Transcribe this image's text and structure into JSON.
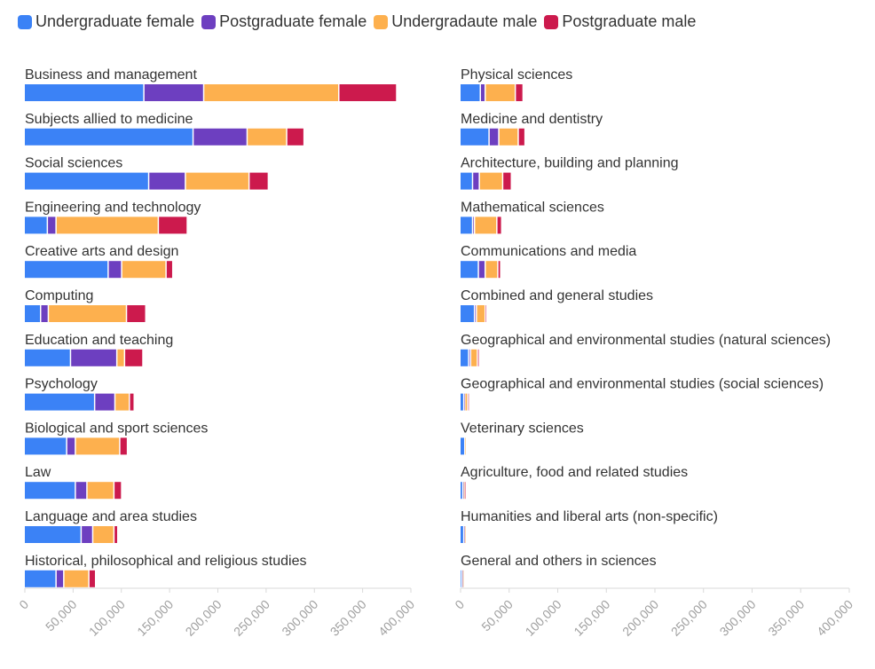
{
  "legend": {
    "items": [
      {
        "label": "Undergraduate female",
        "color": "#3b82f6"
      },
      {
        "label": "Postgraduate female",
        "color": "#6d3fc0"
      },
      {
        "label": "Undergradaute male",
        "color": "#fdb04e"
      },
      {
        "label": "Postgraduate male",
        "color": "#cc1a4d"
      }
    ]
  },
  "chart_data": [
    {
      "type": "bar",
      "orientation": "horizontal",
      "stacked": true,
      "categories": [
        "Business and management",
        "Subjects allied to medicine",
        "Social sciences",
        "Engineering and technology",
        "Creative arts and design",
        "Computing",
        "Education and teaching",
        "Psychology",
        "Biological and sport sciences",
        "Law",
        "Language and area studies",
        "Historical, philosophical and religious studies"
      ],
      "series": [
        {
          "name": "Undergraduate female",
          "color": "#3b82f6",
          "values": [
            124000,
            175000,
            129000,
            24000,
            87000,
            17000,
            48000,
            73000,
            44000,
            53000,
            59000,
            33000
          ]
        },
        {
          "name": "Postgraduate female",
          "color": "#6d3fc0",
          "values": [
            62000,
            56000,
            38000,
            9000,
            14000,
            8000,
            48000,
            21000,
            9000,
            12000,
            12000,
            8000
          ]
        },
        {
          "name": "Undergradaute male",
          "color": "#fdb04e",
          "values": [
            140000,
            41000,
            66000,
            106000,
            46000,
            81000,
            8000,
            15000,
            46000,
            28000,
            22000,
            26000
          ]
        },
        {
          "name": "Postgraduate male",
          "color": "#cc1a4d",
          "values": [
            60000,
            18000,
            20000,
            30000,
            7000,
            20000,
            19000,
            5000,
            8000,
            8000,
            4000,
            7000
          ]
        }
      ],
      "xlim": [
        0,
        400000
      ],
      "xticks": [
        "0",
        "50,000",
        "100,000",
        "150,000",
        "200,000",
        "250,000",
        "300,000",
        "350,000",
        "400,000"
      ]
    },
    {
      "type": "bar",
      "orientation": "horizontal",
      "stacked": true,
      "categories": [
        "Physical sciences",
        "Medicine and dentistry",
        "Architecture, building and planning",
        "Mathematical sciences",
        "Communications and media",
        "Combined and general studies",
        "Geographical and environmental studies (natural sciences)",
        "Geographical and environmental studies (social sciences)",
        "Veterinary sciences",
        "Agriculture, food and related studies",
        "Humanities and liberal arts (non-specific)",
        "General and others in sciences"
      ],
      "series": [
        {
          "name": "Undergraduate female",
          "color": "#3b82f6",
          "values": [
            21000,
            30000,
            13000,
            13000,
            19000,
            15000,
            9000,
            4000,
            5000,
            3000,
            4000,
            2000
          ]
        },
        {
          "name": "Postgraduate female",
          "color": "#6d3fc0",
          "values": [
            5000,
            10000,
            7000,
            2000,
            7000,
            2000,
            2000,
            1000,
            0,
            500,
            500,
            500
          ]
        },
        {
          "name": "Undergradaute male",
          "color": "#fdb04e",
          "values": [
            31000,
            20000,
            24000,
            23000,
            13000,
            9000,
            7000,
            3000,
            1000,
            1000,
            1000,
            500
          ]
        },
        {
          "name": "Postgraduate male",
          "color": "#cc1a4d",
          "values": [
            8000,
            7000,
            9000,
            5000,
            3000,
            1000,
            2000,
            1000,
            0,
            500,
            0,
            0
          ]
        }
      ],
      "xlim": [
        0,
        400000
      ],
      "xticks": [
        "0",
        "50,000",
        "100,000",
        "150,000",
        "200,000",
        "250,000",
        "300,000",
        "350,000",
        "400,000"
      ]
    }
  ]
}
